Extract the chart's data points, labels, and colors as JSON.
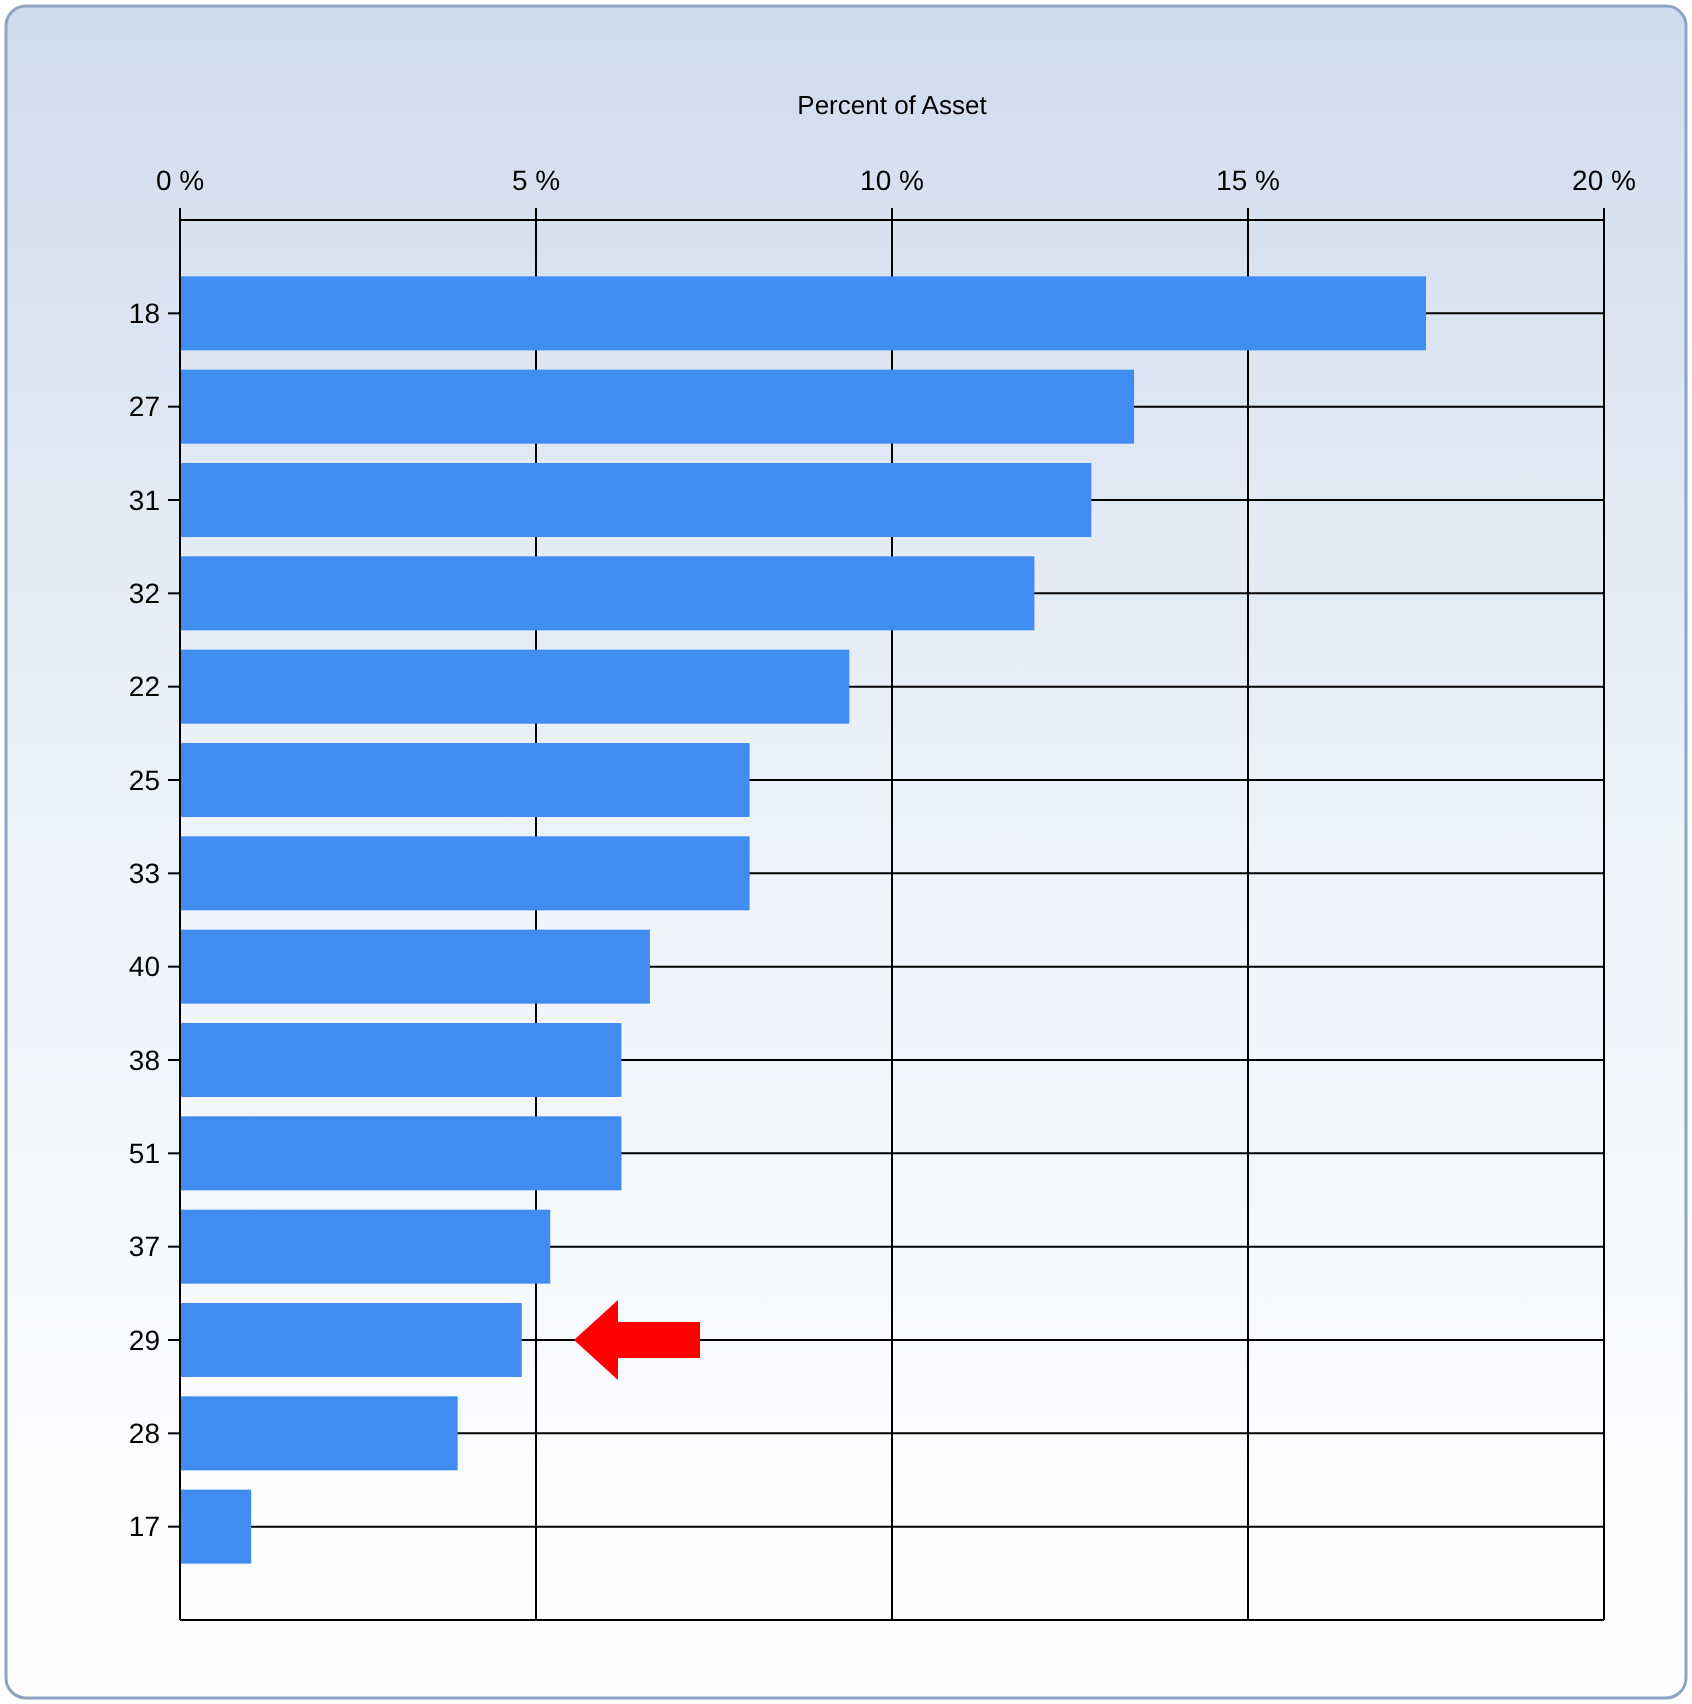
{
  "chart_data": {
    "type": "bar",
    "orientation": "horizontal",
    "xlabel": "Percent of Asset",
    "categories": [
      "18",
      "27",
      "31",
      "32",
      "22",
      "25",
      "33",
      "40",
      "38",
      "51",
      "37",
      "29",
      "28",
      "17"
    ],
    "values": [
      17.5,
      13.4,
      12.8,
      12.0,
      9.4,
      8.0,
      8.0,
      6.6,
      6.2,
      6.2,
      5.2,
      4.8,
      3.9,
      1.0
    ],
    "color": "#418cf0",
    "xlim": [
      0,
      20
    ],
    "xticks": [
      {
        "value": 0,
        "label": "0 %"
      },
      {
        "value": 5,
        "label": "5 %"
      },
      {
        "value": 10,
        "label": "10 %"
      },
      {
        "value": 15,
        "label": "15 %"
      },
      {
        "value": 20,
        "label": "20 %"
      }
    ],
    "grid": true
  }
}
